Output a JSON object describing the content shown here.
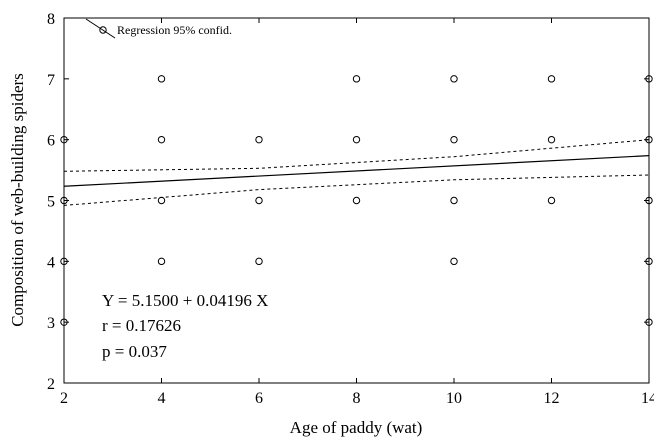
{
  "chart_data": {
    "type": "scatter",
    "xlabel": "Age of paddy (wat)",
    "ylabel": "Composition of web-building spiders",
    "xlim": [
      2,
      14
    ],
    "ylim": [
      2,
      8
    ],
    "xticks": [
      2,
      4,
      6,
      8,
      10,
      12,
      14
    ],
    "yticks": [
      2,
      3,
      4,
      5,
      6,
      7,
      8
    ],
    "points": [
      {
        "x": 2,
        "y": 6
      },
      {
        "x": 2,
        "y": 5
      },
      {
        "x": 2,
        "y": 4
      },
      {
        "x": 2,
        "y": 3
      },
      {
        "x": 4,
        "y": 7
      },
      {
        "x": 4,
        "y": 6
      },
      {
        "x": 4,
        "y": 5
      },
      {
        "x": 4,
        "y": 4
      },
      {
        "x": 6,
        "y": 6
      },
      {
        "x": 6,
        "y": 5
      },
      {
        "x": 6,
        "y": 4
      },
      {
        "x": 8,
        "y": 7
      },
      {
        "x": 8,
        "y": 6
      },
      {
        "x": 8,
        "y": 5
      },
      {
        "x": 10,
        "y": 7
      },
      {
        "x": 10,
        "y": 6
      },
      {
        "x": 10,
        "y": 5
      },
      {
        "x": 10,
        "y": 4
      },
      {
        "x": 12,
        "y": 7
      },
      {
        "x": 12,
        "y": 6
      },
      {
        "x": 12,
        "y": 5
      },
      {
        "x": 14,
        "y": 7
      },
      {
        "x": 14,
        "y": 6
      },
      {
        "x": 14,
        "y": 5
      },
      {
        "x": 14,
        "y": 4
      },
      {
        "x": 14,
        "y": 3
      }
    ],
    "regression": {
      "intercept": 5.15,
      "slope": 0.04196
    },
    "confidence_band": {
      "upper": [
        {
          "x": 2,
          "y": 5.48
        },
        {
          "x": 6,
          "y": 5.53
        },
        {
          "x": 10,
          "y": 5.72
        },
        {
          "x": 14,
          "y": 6.0
        }
      ],
      "lower": [
        {
          "x": 2,
          "y": 4.92
        },
        {
          "x": 6,
          "y": 5.18
        },
        {
          "x": 10,
          "y": 5.34
        },
        {
          "x": 14,
          "y": 5.42
        }
      ]
    },
    "legend": {
      "label": "Regression 95% confid.",
      "position": "top-left"
    },
    "annotations": [
      "Y = 5.1500 + 0.04196 X",
      "r = 0.17626",
      "p = 0.037"
    ],
    "grid": false
  }
}
